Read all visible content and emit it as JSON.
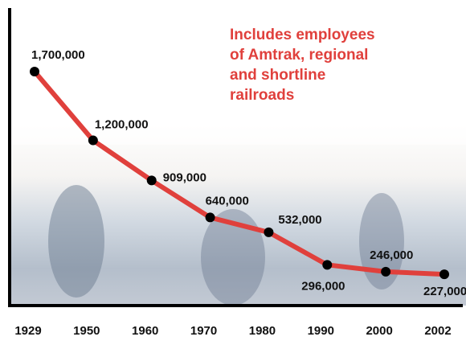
{
  "chart_data": {
    "type": "line",
    "annotation": [
      "Includes employees",
      "of Amtrak, regional",
      "and shortline",
      "railroads"
    ],
    "categories": [
      "1929",
      "1950",
      "1960",
      "1970",
      "1980",
      "1990",
      "2000",
      "2002"
    ],
    "series": [
      {
        "color": "#e0403c",
        "values": [
          1700000,
          1200000,
          909000,
          640000,
          532000,
          296000,
          246000,
          227000
        ],
        "value_labels": [
          "1,700,000",
          "1,200,000",
          "909,000",
          "640,000",
          "532,000",
          "296,000",
          "246,000",
          "227,000"
        ]
      }
    ]
  }
}
